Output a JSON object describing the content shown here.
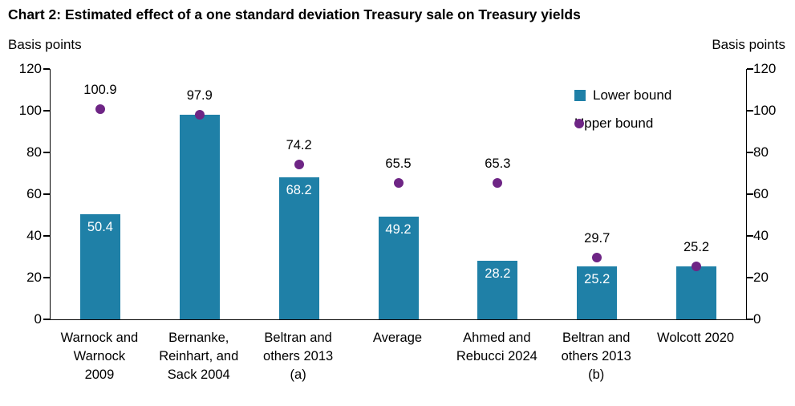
{
  "title": "Chart 2: Estimated effect of a one standard deviation Treasury sale on Treasury yields",
  "axis_left_label": "Basis points",
  "axis_right_label": "Basis points",
  "legend": {
    "lower_label": "Lower bound",
    "upper_label": "Upper bound"
  },
  "colors": {
    "bar": "#1F80A7",
    "dot": "#6E2585",
    "bar_label_text": "#FFFFFF",
    "axis": "#000000"
  },
  "chart_data": {
    "type": "bar",
    "title": "Chart 2: Estimated effect of a one standard deviation Treasury sale on Treasury yields",
    "ylabel": "Basis points",
    "ylim": [
      0,
      120
    ],
    "yticks": [
      0,
      20,
      40,
      60,
      80,
      100,
      120
    ],
    "grid": false,
    "legend_position": "top-right",
    "categories": [
      "Warnock and Warnock 2009",
      "Bernanke, Reinhart, and Sack 2004",
      "Beltran and others 2013 (a)",
      "Average",
      "Ahmed and Rebucci 2024",
      "Beltran and others 2013 (b)",
      "Wolcott 2020"
    ],
    "category_lines": [
      [
        "Warnock and",
        "Warnock",
        "2009"
      ],
      [
        "Bernanke,",
        "Reinhart, and",
        "Sack 2004"
      ],
      [
        "Beltran and",
        "others 2013",
        "(a)"
      ],
      [
        "Average"
      ],
      [
        "Ahmed and",
        "Rebucci 2024"
      ],
      [
        "Beltran and",
        "others 2013",
        "(b)"
      ],
      [
        "Wolcott 2020"
      ]
    ],
    "series": [
      {
        "name": "Lower bound",
        "type": "bar",
        "values": [
          50.4,
          97.9,
          68.2,
          49.2,
          28.2,
          25.2,
          25.2
        ]
      },
      {
        "name": "Upper bound",
        "type": "scatter",
        "values": [
          100.9,
          97.9,
          74.2,
          65.5,
          65.3,
          29.7,
          25.2
        ]
      }
    ],
    "bar_value_labels": [
      "50.4",
      null,
      "68.2",
      "49.2",
      "28.2",
      "25.2",
      null
    ],
    "point_value_labels": [
      "100.9",
      "97.9",
      "74.2",
      "65.5",
      "65.3",
      "29.7",
      "25.2"
    ]
  }
}
